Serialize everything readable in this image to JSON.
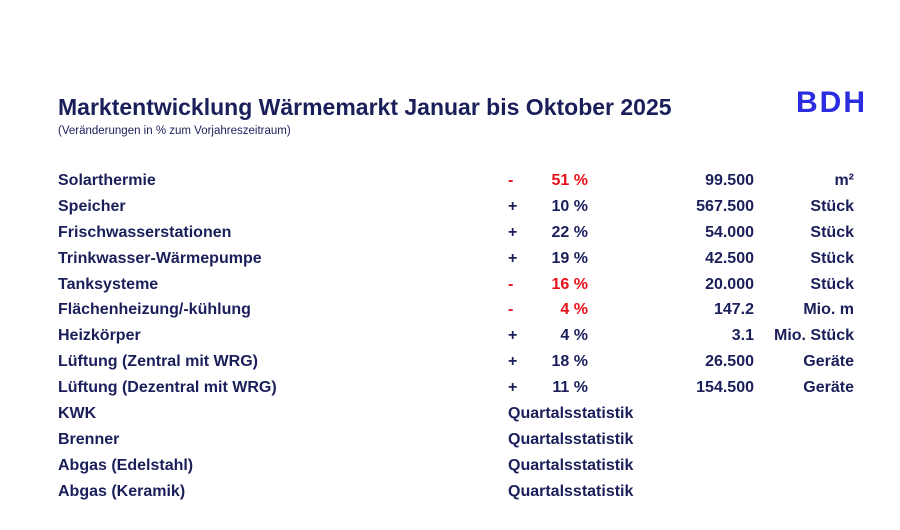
{
  "header": {
    "title": "Marktentwicklung Wärmemarkt Januar bis Oktober 2025",
    "subtitle": "(Veränderungen in % zum Vorjahreszeitraum)",
    "logo": "BDH"
  },
  "colors": {
    "text": "#1a1f5a",
    "negative": "#e8101a",
    "logo": "#2b2be0"
  },
  "rows": [
    {
      "label": "Solarthermie",
      "sign": "-",
      "pct": "51 %",
      "value": "99.500",
      "unit": "m²",
      "negative": true
    },
    {
      "label": "Speicher",
      "sign": "+",
      "pct": "10 %",
      "value": "567.500",
      "unit": "Stück",
      "negative": false
    },
    {
      "label": "Frischwasserstationen",
      "sign": "+",
      "pct": "22 %",
      "value": "54.000",
      "unit": "Stück",
      "negative": false
    },
    {
      "label": "Trinkwasser-Wärmepumpe",
      "sign": "+",
      "pct": "19 %",
      "value": "42.500",
      "unit": "Stück",
      "negative": false
    },
    {
      "label": "Tanksysteme",
      "sign": "-",
      "pct": "16 %",
      "value": "20.000",
      "unit": "Stück",
      "negative": true
    },
    {
      "label": "Flächenheizung/-kühlung",
      "sign": "-",
      "pct": "4 %",
      "value": "147.2",
      "unit": "Mio. m",
      "negative": true
    },
    {
      "label": "Heizkörper",
      "sign": "+",
      "pct": "4 %",
      "value": "3.1",
      "unit": "Mio. Stück",
      "negative": false
    },
    {
      "label": "Lüftung (Zentral mit WRG)",
      "sign": "+",
      "pct": "18 %",
      "value": "26.500",
      "unit": "Geräte",
      "negative": false
    },
    {
      "label": "Lüftung (Dezentral mit WRG)",
      "sign": "+",
      "pct": "11 %",
      "value": "154.500",
      "unit": "Geräte",
      "negative": false
    },
    {
      "label": "KWK",
      "quarterly": "Quartalsstatistik"
    },
    {
      "label": "Brenner",
      "quarterly": "Quartalsstatistik"
    },
    {
      "label": "Abgas (Edelstahl)",
      "quarterly": "Quartalsstatistik"
    },
    {
      "label": "Abgas (Keramik)",
      "quarterly": "Quartalsstatistik"
    }
  ]
}
